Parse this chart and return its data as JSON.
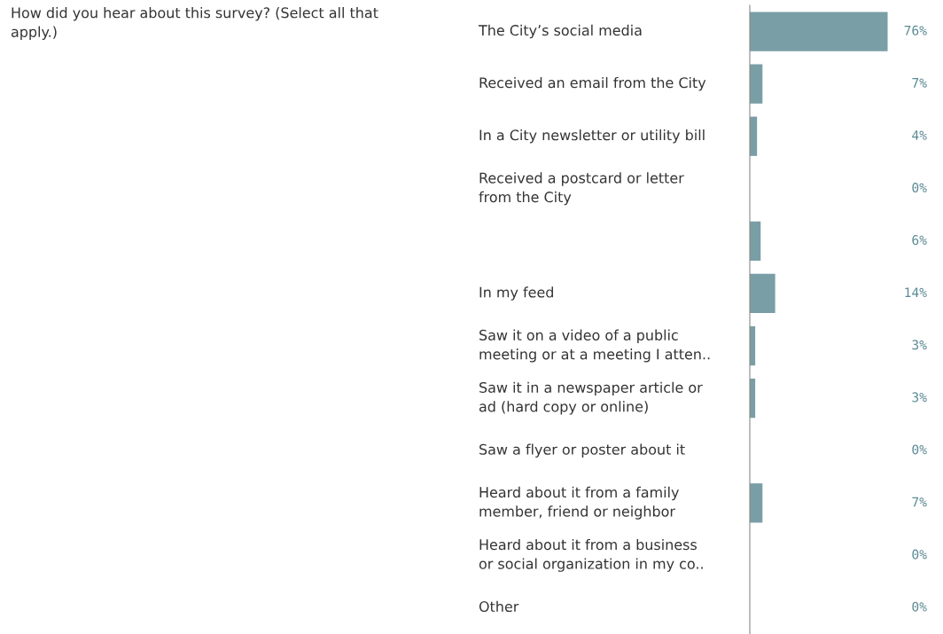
{
  "chart_data": {
    "type": "bar",
    "orientation": "horizontal",
    "title": "How did you hear about this survey? (Select all that\napply.)",
    "categories": [
      "The City’s social media",
      "Received an email from the City",
      "In a City newsletter or utility bill",
      "Received a postcard or letter\nfrom the City",
      null,
      "In my feed",
      "Saw it on a video of a public\nmeeting or at a meeting I atten..",
      "Saw it in a newspaper article or\nad (hard copy or online)",
      "Saw a flyer or poster about it",
      "Heard about it from a family\nmember, friend or neighbor",
      "Heard about it from a business\nor social organization in my co..",
      "Other"
    ],
    "values": [
      76,
      7,
      4,
      0,
      6,
      14,
      3,
      3,
      0,
      7,
      0,
      0
    ],
    "value_labels": [
      "76%",
      "7%",
      "4%",
      "0%",
      "6%",
      "14%",
      "3%",
      "3%",
      "0%",
      "7%",
      "0%",
      "0%"
    ],
    "color": "#7a9ea6"
  }
}
